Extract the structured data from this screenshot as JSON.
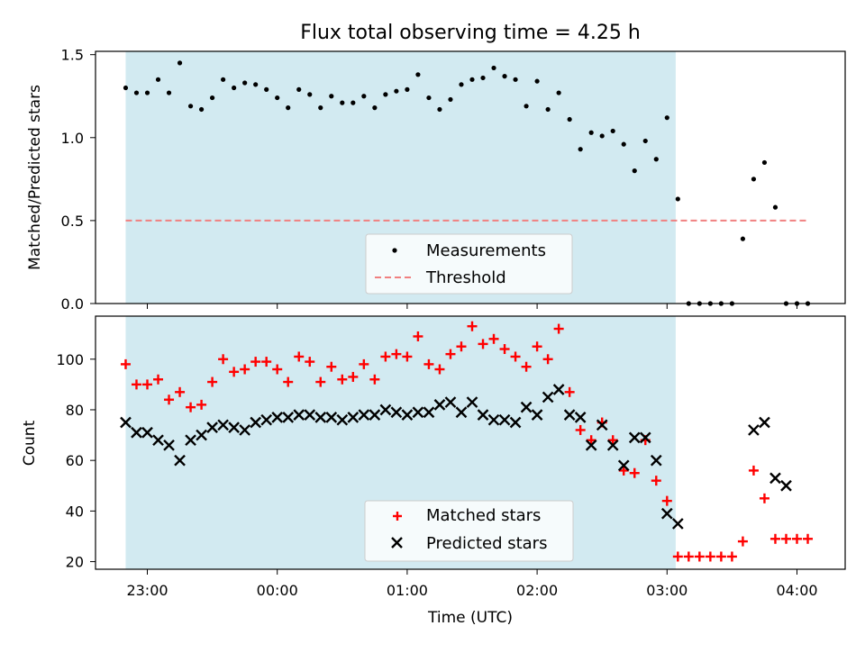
{
  "chart_data": [
    {
      "type": "scatter",
      "title": "Flux total observing time = 4.25 h",
      "ylabel": "Matched/Predicted stars",
      "xlabel": "",
      "ylim": [
        0,
        1.52
      ],
      "yticks": [
        "0.0",
        "0.5",
        "1.0",
        "1.5"
      ],
      "threshold": 0.5,
      "shaded_range": [
        "22:50",
        "03:04"
      ],
      "shade_color": "#add8e6",
      "legend_position": "lower-center",
      "legend": [
        "Measurements",
        "Threshold"
      ],
      "series": [
        {
          "name": "Measurements",
          "color": "#000000",
          "x": [
            "22:50",
            "22:55",
            "23:00",
            "23:05",
            "23:10",
            "23:15",
            "23:20",
            "23:25",
            "23:30",
            "23:35",
            "23:40",
            "23:45",
            "23:50",
            "23:55",
            "00:00",
            "00:05",
            "00:10",
            "00:15",
            "00:20",
            "00:25",
            "00:30",
            "00:35",
            "00:40",
            "00:45",
            "00:50",
            "00:55",
            "01:00",
            "01:05",
            "01:10",
            "01:15",
            "01:20",
            "01:25",
            "01:30",
            "01:35",
            "01:40",
            "01:45",
            "01:50",
            "01:55",
            "02:00",
            "02:05",
            "02:10",
            "02:15",
            "02:20",
            "02:25",
            "02:30",
            "02:35",
            "02:40",
            "02:45",
            "02:50",
            "02:55",
            "03:00",
            "03:05",
            "03:10",
            "03:15",
            "03:20",
            "03:25",
            "03:30",
            "03:35",
            "03:40",
            "03:45",
            "03:50",
            "03:55",
            "04:00",
            "04:05"
          ],
          "y": [
            1.3,
            1.27,
            1.27,
            1.35,
            1.27,
            1.45,
            1.19,
            1.17,
            1.24,
            1.35,
            1.3,
            1.33,
            1.32,
            1.29,
            1.24,
            1.18,
            1.29,
            1.26,
            1.18,
            1.25,
            1.21,
            1.21,
            1.25,
            1.18,
            1.26,
            1.28,
            1.29,
            1.38,
            1.24,
            1.17,
            1.23,
            1.32,
            1.35,
            1.36,
            1.42,
            1.37,
            1.35,
            1.19,
            1.34,
            1.17,
            1.27,
            1.11,
            0.93,
            1.03,
            1.01,
            1.04,
            0.96,
            0.8,
            0.98,
            0.87,
            1.12,
            0.63,
            0.0,
            0.0,
            0.0,
            0.0,
            0.0,
            0.39,
            0.75,
            0.85,
            0.58,
            0.0,
            0.0,
            0.0
          ]
        },
        {
          "name": "Threshold",
          "color": "#f08080",
          "style": "dashed",
          "x": [
            "22:50",
            "04:05"
          ],
          "y": [
            0.5,
            0.5
          ]
        }
      ]
    },
    {
      "type": "scatter",
      "title": "",
      "ylabel": "Count",
      "xlabel": "Time (UTC)",
      "ylim": [
        17,
        117
      ],
      "yticks": [
        "20",
        "40",
        "60",
        "80",
        "100"
      ],
      "xticks": [
        "23:00",
        "00:00",
        "01:00",
        "02:00",
        "03:00",
        "04:00"
      ],
      "legend_position": "lower-center",
      "legend": [
        "Matched stars",
        "Predicted stars"
      ],
      "series": [
        {
          "name": "Matched stars",
          "marker": "+",
          "color": "#ff0000",
          "x": [
            "22:50",
            "22:55",
            "23:00",
            "23:05",
            "23:10",
            "23:15",
            "23:20",
            "23:25",
            "23:30",
            "23:35",
            "23:40",
            "23:45",
            "23:50",
            "23:55",
            "00:00",
            "00:05",
            "00:10",
            "00:15",
            "00:20",
            "00:25",
            "00:30",
            "00:35",
            "00:40",
            "00:45",
            "00:50",
            "00:55",
            "01:00",
            "01:05",
            "01:10",
            "01:15",
            "01:20",
            "01:25",
            "01:30",
            "01:35",
            "01:40",
            "01:45",
            "01:50",
            "01:55",
            "02:00",
            "02:05",
            "02:10",
            "02:15",
            "02:20",
            "02:25",
            "02:30",
            "02:35",
            "02:40",
            "02:45",
            "02:50",
            "02:55",
            "03:00",
            "03:05",
            "03:10",
            "03:15",
            "03:20",
            "03:25",
            "03:30",
            "03:35",
            "03:40",
            "03:45",
            "03:50",
            "03:55",
            "04:00",
            "04:05"
          ],
          "y": [
            98,
            90,
            90,
            92,
            84,
            87,
            81,
            82,
            91,
            100,
            95,
            96,
            99,
            99,
            96,
            91,
            101,
            99,
            91,
            97,
            92,
            93,
            98,
            92,
            101,
            102,
            101,
            109,
            98,
            96,
            102,
            105,
            113,
            106,
            108,
            104,
            101,
            97,
            105,
            100,
            112,
            87,
            72,
            68,
            75,
            68,
            56,
            55,
            68,
            52,
            44,
            22,
            22,
            22,
            22,
            22,
            22,
            28,
            56,
            45,
            29,
            29,
            29,
            29
          ]
        },
        {
          "name": "Predicted stars",
          "marker": "x",
          "color": "#000000",
          "x": [
            "22:50",
            "22:55",
            "23:00",
            "23:05",
            "23:10",
            "23:15",
            "23:20",
            "23:25",
            "23:30",
            "23:35",
            "23:40",
            "23:45",
            "23:50",
            "23:55",
            "00:00",
            "00:05",
            "00:10",
            "00:15",
            "00:20",
            "00:25",
            "00:30",
            "00:35",
            "00:40",
            "00:45",
            "00:50",
            "00:55",
            "01:00",
            "01:05",
            "01:10",
            "01:15",
            "01:20",
            "01:25",
            "01:30",
            "01:35",
            "01:40",
            "01:45",
            "01:50",
            "01:55",
            "02:00",
            "02:05",
            "02:10",
            "02:15",
            "02:20",
            "02:25",
            "02:30",
            "02:35",
            "02:40",
            "02:45",
            "02:50",
            "02:55",
            "03:00",
            "03:05",
            "03:40",
            "03:45",
            "03:50",
            "03:55"
          ],
          "y": [
            75,
            71,
            71,
            68,
            66,
            60,
            68,
            70,
            73,
            74,
            73,
            72,
            75,
            76,
            77,
            77,
            78,
            78,
            77,
            77,
            76,
            77,
            78,
            78,
            80,
            79,
            78,
            79,
            79,
            82,
            83,
            79,
            83,
            78,
            76,
            76,
            75,
            81,
            78,
            85,
            88,
            78,
            77,
            66,
            74,
            66,
            58,
            69,
            69,
            60,
            39,
            35,
            72,
            75,
            53,
            50
          ]
        }
      ]
    }
  ]
}
